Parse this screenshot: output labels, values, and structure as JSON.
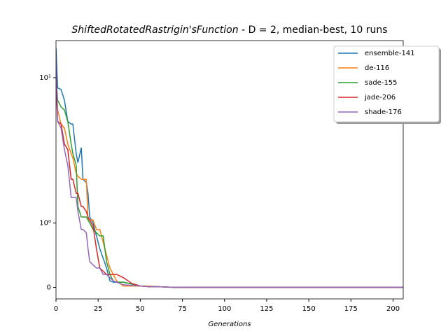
{
  "chart_data": {
    "type": "line",
    "title_function": "ShiftedRotatedRastrigin'sFunction",
    "title_suffix": " - D = 2, median-best, 10 runs",
    "xlabel": "Generations",
    "yscale": "symlog",
    "x": [
      0,
      1,
      3,
      5,
      7,
      9,
      10,
      12,
      13,
      15,
      16,
      18,
      19,
      20,
      22,
      24,
      26,
      28,
      30,
      32,
      34,
      36,
      40,
      45,
      50,
      55,
      60,
      70,
      206
    ],
    "series": [
      {
        "name": "ensemble-141",
        "color": "#1f77b4",
        "values": [
          16,
          8.5,
          8.3,
          7,
          5,
          4.8,
          4.8,
          3,
          2.6,
          3.3,
          2,
          1.9,
          1.6,
          1.1,
          1.0,
          0.8,
          0.6,
          0.45,
          0.3,
          0.1,
          0.08,
          0.08,
          0.08,
          0.05,
          0.02,
          0.01,
          0.01,
          0,
          0
        ]
      },
      {
        "name": "de-116",
        "color": "#ff7f0e",
        "values": [
          12,
          6,
          4.8,
          4.5,
          3.5,
          3,
          2.8,
          2.2,
          2.1,
          2,
          2,
          2,
          1.05,
          1.05,
          1.05,
          0.9,
          0.9,
          0.7,
          0.5,
          0.3,
          0.2,
          0.1,
          0.02,
          0.02,
          0.02,
          0.02,
          0.01,
          0,
          0
        ]
      },
      {
        "name": "sade-155",
        "color": "#2ca02c",
        "values": [
          10,
          7,
          6.3,
          6,
          5,
          3.5,
          3,
          2.5,
          1.3,
          1.1,
          1.1,
          1.1,
          1.05,
          1,
          0.9,
          0.85,
          0.8,
          0.8,
          0.4,
          0.2,
          0.1,
          0.08,
          0.08,
          0.05,
          0.02,
          0.01,
          0.01,
          0,
          0
        ]
      },
      {
        "name": "jade-206",
        "color": "#d62728",
        "values": [
          9,
          5,
          4.8,
          3.5,
          3.2,
          2,
          2,
          1.6,
          1.6,
          1.3,
          1.3,
          1.2,
          1.1,
          1.05,
          0.95,
          0.6,
          0.3,
          0.25,
          0.2,
          0.2,
          0.2,
          0.2,
          0.15,
          0.06,
          0.02,
          0.01,
          0.01,
          0,
          0
        ]
      },
      {
        "name": "shade-176",
        "color": "#9467bd",
        "values": [
          14,
          5,
          4.5,
          3.2,
          2.5,
          1.5,
          1.5,
          1.5,
          1.2,
          0.9,
          0.9,
          0.85,
          0.6,
          0.4,
          0.35,
          0.3,
          0.3,
          0.2,
          0.2,
          0.15,
          0.1,
          0.08,
          0.04,
          0.03,
          0.02,
          0.01,
          0.01,
          0,
          0
        ]
      }
    ],
    "xlim": [
      0,
      206
    ],
    "xticks": [
      0,
      25,
      50,
      75,
      100,
      125,
      150,
      175,
      200
    ],
    "ylim": [
      -0.18,
      18
    ],
    "yticks": [
      0,
      {
        "value": 1,
        "label": "10⁰"
      },
      {
        "value": 10,
        "label": "10¹"
      }
    ],
    "legend": "upper right"
  }
}
